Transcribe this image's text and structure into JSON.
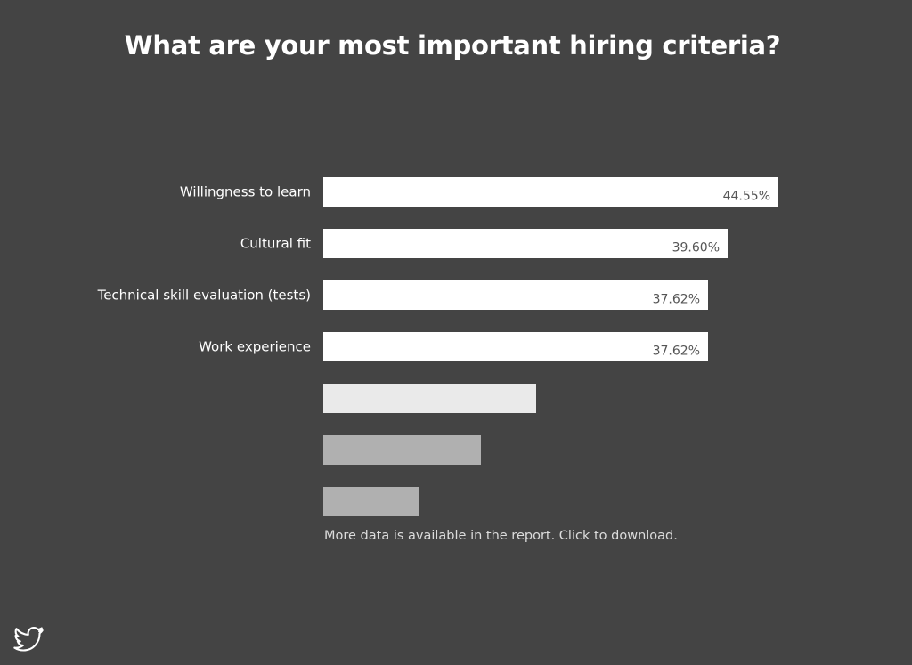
{
  "title": "What are your most important hiring criteria?",
  "footer_note": "More data is available in the report. Click to download.",
  "share_icon": "twitter-bird-icon",
  "colors": {
    "background": "#444444",
    "bar_primary": "#ffffff",
    "bar_faded_1": "#eaeaea",
    "bar_faded_2": "#b0b0b0",
    "value_text": "#555555"
  },
  "chart_data": {
    "type": "bar",
    "orientation": "horizontal",
    "title": "What are your most important hiring criteria?",
    "categories": [
      "Willingness to learn",
      "Cultural fit",
      "Technical skill evaluation (tests)",
      "Work experience",
      "",
      "",
      ""
    ],
    "values": [
      44.55,
      39.6,
      37.62,
      37.62,
      20.8,
      15.4,
      9.4
    ],
    "value_labels": [
      "44.55%",
      "39.60%",
      "37.62%",
      "37.62%",
      "",
      "",
      ""
    ],
    "bar_colors": [
      "#ffffff",
      "#ffffff",
      "#ffffff",
      "#ffffff",
      "#eaeaea",
      "#b0b0b0",
      "#b0b0b0"
    ],
    "unit": "%",
    "xlim": [
      0,
      44.55
    ],
    "grid": false,
    "legend": "none"
  }
}
